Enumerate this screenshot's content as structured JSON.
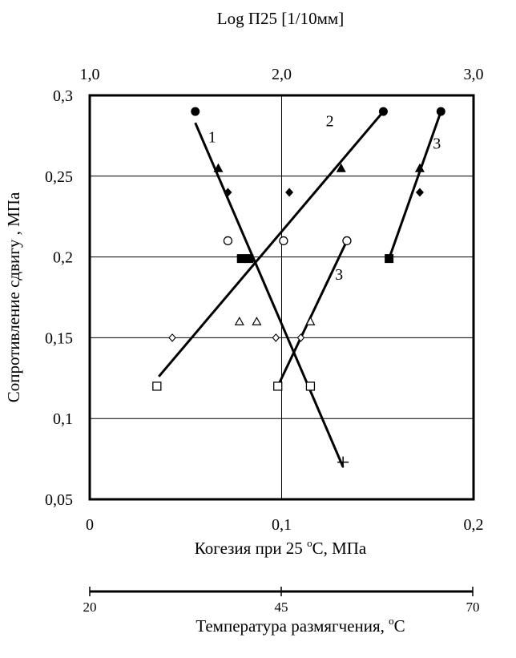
{
  "chart_data": {
    "type": "scatter",
    "title": "",
    "top_axis": {
      "label": "Log П25 [1/10мм]",
      "range": [
        1.0,
        3.0
      ],
      "ticks": [
        "1,0",
        "2,0",
        "3,0"
      ]
    },
    "x_axis": {
      "label": "Когезия при 25 °C, МПа",
      "label_parts": [
        "Когезия при 25 ",
        "о",
        "С, МПа"
      ],
      "range": [
        0,
        0.2
      ],
      "ticks": [
        "0",
        "0,1",
        "0,2"
      ]
    },
    "temp_axis": {
      "label": "Температура размягчения, °C",
      "label_parts": [
        "Температура размягчения, ",
        "о",
        "С"
      ],
      "range": [
        20,
        70
      ],
      "ticks": [
        "20",
        "45",
        "70"
      ]
    },
    "y_axis": {
      "label": "Сопротивление сдвигу , МПа",
      "range": [
        0.05,
        0.3
      ],
      "ticks": [
        "0,05",
        "0,1",
        "0,15",
        "0,2",
        "0,25",
        "0,3"
      ]
    },
    "grid": true,
    "series": [
      {
        "marker": "filled-circle",
        "points": [
          [
            0.055,
            0.29
          ],
          [
            0.153,
            0.29
          ],
          [
            0.183,
            0.29
          ]
        ]
      },
      {
        "marker": "filled-triangle",
        "points": [
          [
            0.067,
            0.255
          ],
          [
            0.131,
            0.255
          ],
          [
            0.172,
            0.255
          ]
        ]
      },
      {
        "marker": "filled-diamond",
        "points": [
          [
            0.072,
            0.24
          ],
          [
            0.104,
            0.24
          ],
          [
            0.172,
            0.24
          ]
        ]
      },
      {
        "marker": "filled-square",
        "points": [
          [
            0.079,
            0.199
          ],
          [
            0.083,
            0.199
          ],
          [
            0.156,
            0.199
          ]
        ]
      },
      {
        "marker": "open-circle",
        "points": [
          [
            0.072,
            0.21
          ],
          [
            0.101,
            0.21
          ],
          [
            0.134,
            0.21
          ]
        ]
      },
      {
        "marker": "open-triangle",
        "points": [
          [
            0.078,
            0.16
          ],
          [
            0.087,
            0.16
          ],
          [
            0.115,
            0.16
          ]
        ]
      },
      {
        "marker": "open-diamond",
        "points": [
          [
            0.043,
            0.15
          ],
          [
            0.097,
            0.15
          ],
          [
            0.11,
            0.15
          ]
        ]
      },
      {
        "marker": "open-square",
        "points": [
          [
            0.035,
            0.12
          ],
          [
            0.098,
            0.12
          ],
          [
            0.115,
            0.12
          ]
        ]
      },
      {
        "marker": "plus",
        "points": [
          [
            0.132,
            0.073
          ]
        ]
      }
    ],
    "trend_lines": [
      {
        "label": "1",
        "from": [
          0.055,
          0.283
        ],
        "to": [
          0.132,
          0.07
        ]
      },
      {
        "label": "2",
        "from": [
          0.036,
          0.126
        ],
        "to": [
          0.153,
          0.29
        ]
      },
      {
        "label": "3",
        "from": [
          0.156,
          0.199
        ],
        "to": [
          0.183,
          0.29
        ]
      },
      {
        "label": "3",
        "from": [
          0.098,
          0.12
        ],
        "to": [
          0.134,
          0.21
        ]
      }
    ]
  }
}
